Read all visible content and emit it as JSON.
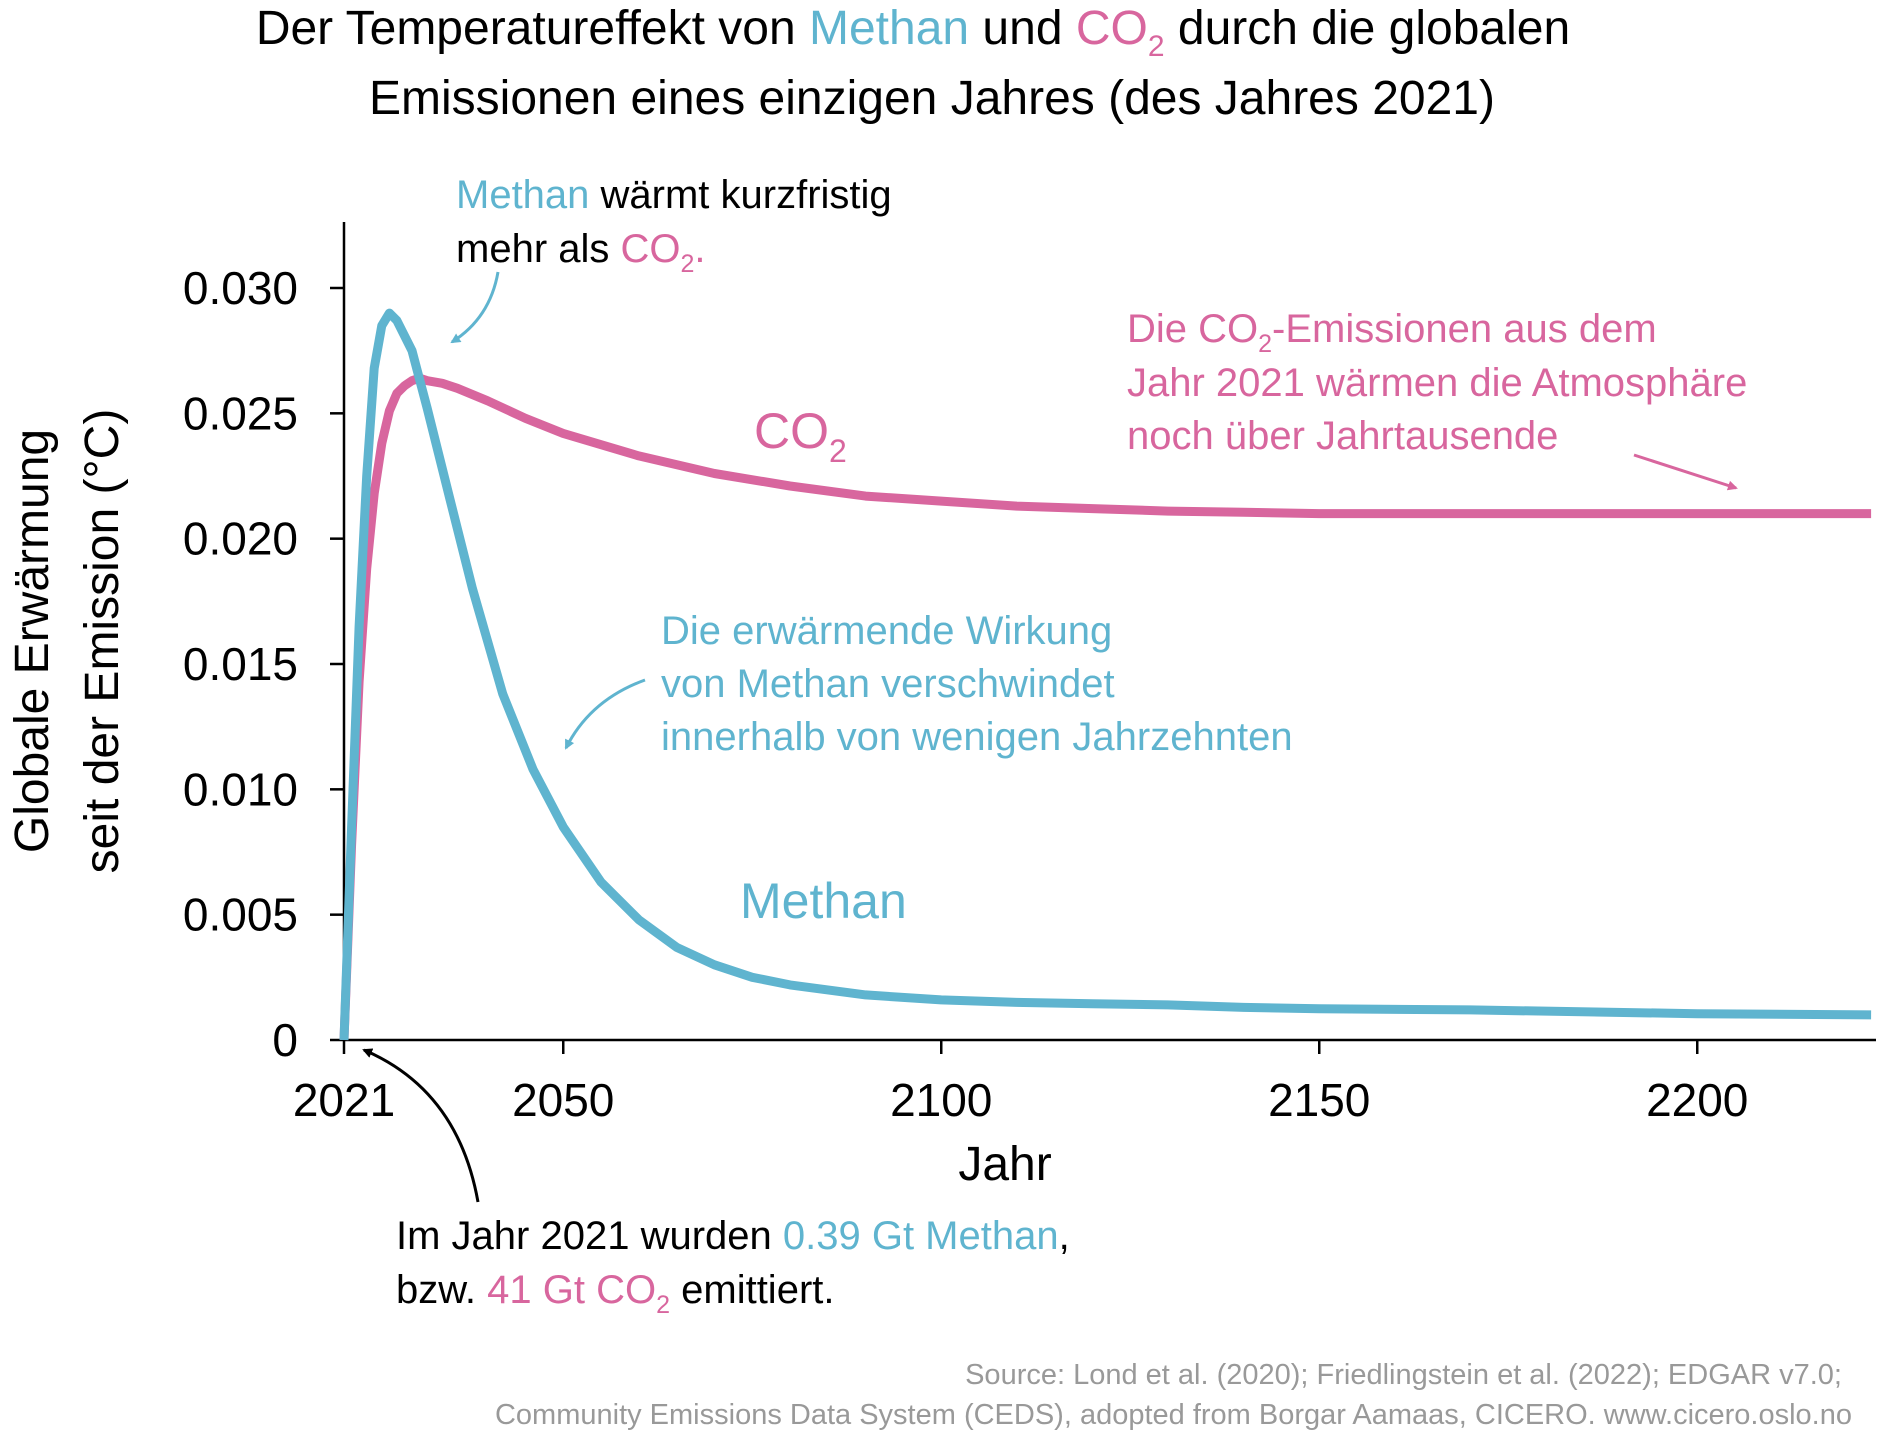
{
  "title": {
    "line1_a": "Der Temperatureffekt von ",
    "line1_methan": "Methan",
    "line1_b": " und ",
    "line1_co": "CO",
    "line1_sub": "2",
    "line1_c": " durch die globalen",
    "line2": "Emissionen eines einzigen Jahres (des Jahres 2021)"
  },
  "chart_data": {
    "type": "line",
    "xlabel": "Jahr",
    "ylabel_line1": "Globale Erwärmung",
    "ylabel_line2": "seit der Emission (°C)",
    "xlim": [
      2021,
      2223
    ],
    "ylim": [
      0,
      0.032
    ],
    "x_ticks": [
      2021,
      2050,
      2100,
      2150,
      2200
    ],
    "x_tick_labels": [
      "2021",
      "2050",
      "2100",
      "2150",
      "2200"
    ],
    "y_ticks": [
      0,
      0.005,
      0.01,
      0.015,
      0.02,
      0.025,
      0.03
    ],
    "y_tick_labels": [
      "0",
      "0.005",
      "0.010",
      "0.015",
      "0.020",
      "0.025",
      "0.030"
    ],
    "series": [
      {
        "name": "Methan",
        "color": "#5fb4cf",
        "x": [
          2021,
          2022,
          2023,
          2024,
          2025,
          2026,
          2027,
          2028,
          2030,
          2032,
          2035,
          2038,
          2042,
          2046,
          2050,
          2055,
          2060,
          2065,
          2070,
          2075,
          2080,
          2090,
          2100,
          2110,
          2120,
          2130,
          2140,
          2150,
          2170,
          2200,
          2223
        ],
        "y": [
          0.0,
          0.0085,
          0.0165,
          0.0225,
          0.0268,
          0.0285,
          0.029,
          0.0287,
          0.0275,
          0.0252,
          0.0216,
          0.018,
          0.0138,
          0.0108,
          0.0085,
          0.0063,
          0.0048,
          0.0037,
          0.003,
          0.0025,
          0.0022,
          0.0018,
          0.0016,
          0.0015,
          0.00145,
          0.0014,
          0.0013,
          0.00125,
          0.0012,
          0.00105,
          0.001
        ]
      },
      {
        "name": "CO2",
        "color": "#d8669e",
        "x": [
          2021,
          2022,
          2023,
          2024,
          2025,
          2026,
          2027,
          2028,
          2029,
          2030,
          2031,
          2032,
          2034,
          2036,
          2040,
          2045,
          2050,
          2060,
          2070,
          2080,
          2090,
          2100,
          2110,
          2120,
          2130,
          2140,
          2150,
          2175,
          2200,
          2223
        ],
        "y": [
          0.0,
          0.0078,
          0.0143,
          0.0188,
          0.0218,
          0.0238,
          0.0251,
          0.0258,
          0.0261,
          0.0263,
          0.0264,
          0.0263,
          0.0262,
          0.026,
          0.0255,
          0.0248,
          0.0242,
          0.0233,
          0.0226,
          0.0221,
          0.0217,
          0.0215,
          0.0213,
          0.0212,
          0.0211,
          0.02105,
          0.021,
          0.021,
          0.021,
          0.021
        ]
      }
    ],
    "series_labels": {
      "methan": "Methan",
      "co": "CO",
      "co_sub": "2"
    },
    "annotations": {
      "a1_methan": "Methan",
      "a1_line1": " wärmt kurzfristig",
      "a1_line2": "mehr als ",
      "a1_co": "CO",
      "a1_sub": "2",
      "a1_dot": ".",
      "a2_line1_a": "Die CO",
      "a2_sub": "2",
      "a2_line1_b": "-Emissionen aus dem",
      "a2_line2": "Jahr 2021 wärmen die Atmosphäre",
      "a2_line3": "noch über Jahrtausende",
      "a3_line1": "Die erwärmende Wirkung",
      "a3_line2": "von Methan verschwindet",
      "a3_line3": "innerhalb von wenigen Jahrzehnten",
      "a4_line1_a": "Im Jahr 2021 wurden ",
      "a4_line1_b": "0.39 Gt Methan",
      "a4_line1_c": ",",
      "a4_line2_a": "bzw. ",
      "a4_line2_b": "41 Gt CO",
      "a4_sub": "2",
      "a4_line2_c": " emittiert."
    }
  },
  "source": {
    "line1": "Source: Lond et al. (2020); Friedlingstein et al. (2022); EDGAR v7.0;",
    "line2": "Community Emissions Data System (CEDS), adopted from Borgar Aamaas, CICERO. www.cicero.oslo.no"
  }
}
